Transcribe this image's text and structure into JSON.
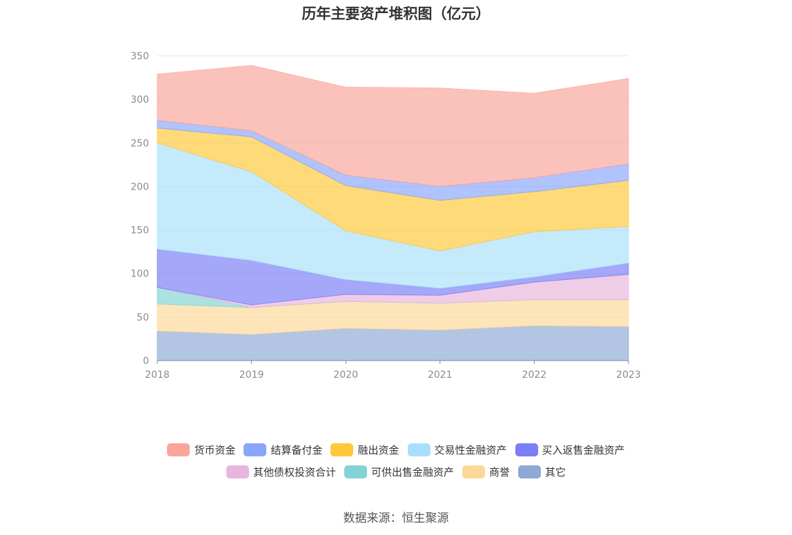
{
  "title": "历年主要资产堆积图（亿元）",
  "source": "数据来源：恒生聚源",
  "chart_data": {
    "type": "area",
    "stacked": true,
    "title": "历年主要资产堆积图（亿元）",
    "categories": [
      "2018",
      "2019",
      "2020",
      "2021",
      "2022",
      "2023"
    ],
    "ylim": [
      0,
      350
    ],
    "yticks": [
      "0",
      "50",
      "100",
      "150",
      "200",
      "250",
      "300",
      "350"
    ],
    "grid": true,
    "legend_position": "bottom",
    "series": [
      {
        "name": "其它",
        "color": "#8ea9d6",
        "values": [
          34,
          30,
          37,
          35,
          40,
          39
        ]
      },
      {
        "name": "商誉",
        "color": "#fcd998",
        "values": [
          31,
          31,
          31,
          31,
          30,
          31
        ]
      },
      {
        "name": "可供出售金融资产",
        "color": "#82d4d4",
        "values": [
          19,
          0,
          0,
          0,
          0,
          0
        ]
      },
      {
        "name": "其他债权投资合计",
        "color": "#e8b6dc",
        "values": [
          0,
          3,
          8,
          9,
          20,
          29
        ]
      },
      {
        "name": "买入返售金融资产",
        "color": "#7b7ef5",
        "values": [
          44,
          51,
          17,
          8,
          6,
          13
        ]
      },
      {
        "name": "交易性金融资产",
        "color": "#a8e0fb",
        "values": [
          122,
          102,
          56,
          43,
          52,
          42
        ]
      },
      {
        "name": "融出资金",
        "color": "#ffc839",
        "values": [
          17,
          40,
          52,
          58,
          46,
          53
        ]
      },
      {
        "name": "结算备付金",
        "color": "#8aa6fa",
        "values": [
          9,
          7,
          12,
          16,
          16,
          19
        ]
      },
      {
        "name": "货币资金",
        "color": "#f9a59c",
        "values": [
          53,
          75,
          101,
          113,
          97,
          98
        ]
      }
    ]
  },
  "legend": {
    "row1": [
      {
        "name": "货币资金",
        "color": "#f9a59c"
      },
      {
        "name": "结算备付金",
        "color": "#8aa6fa"
      },
      {
        "name": "融出资金",
        "color": "#ffc839"
      },
      {
        "name": "交易性金融资产",
        "color": "#a8e0fb"
      },
      {
        "name": "买入返售金融资产",
        "color": "#7b7ef5"
      }
    ],
    "row2": [
      {
        "name": "其他债权投资合计",
        "color": "#e8b6dc"
      },
      {
        "name": "可供出售金融资产",
        "color": "#82d4d4"
      },
      {
        "name": "商誉",
        "color": "#fcd998"
      },
      {
        "name": "其它",
        "color": "#8ea9d6"
      }
    ]
  }
}
